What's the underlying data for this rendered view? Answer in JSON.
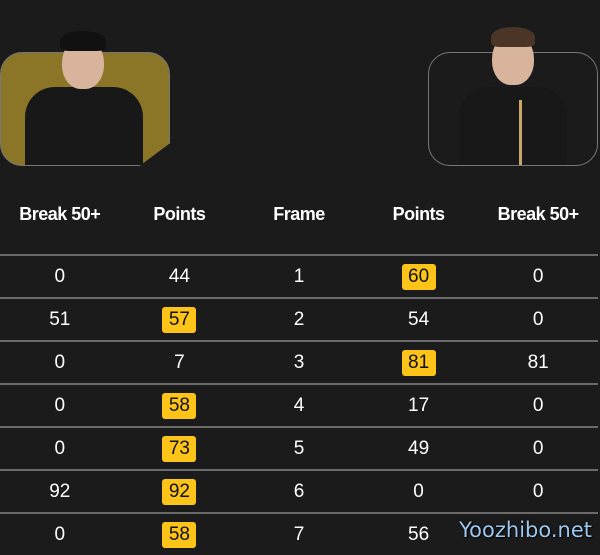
{
  "header": {
    "columns": [
      "Break 50+",
      "Points",
      "Frame",
      "Points",
      "Break 50+"
    ]
  },
  "colors": {
    "highlight": "#fcc419",
    "left_player_bg": "#8b7527",
    "background": "#1b1b1b"
  },
  "frames": [
    {
      "left_break": "0",
      "left_points": "44",
      "frame": "1",
      "right_points": "60",
      "right_break": "0",
      "winner": "right"
    },
    {
      "left_break": "51",
      "left_points": "57",
      "frame": "2",
      "right_points": "54",
      "right_break": "0",
      "winner": "left"
    },
    {
      "left_break": "0",
      "left_points": "7",
      "frame": "3",
      "right_points": "81",
      "right_break": "81",
      "winner": "right"
    },
    {
      "left_break": "0",
      "left_points": "58",
      "frame": "4",
      "right_points": "17",
      "right_break": "0",
      "winner": "left"
    },
    {
      "left_break": "0",
      "left_points": "73",
      "frame": "5",
      "right_points": "49",
      "right_break": "0",
      "winner": "left"
    },
    {
      "left_break": "92",
      "left_points": "92",
      "frame": "6",
      "right_points": "0",
      "right_break": "0",
      "winner": "left"
    },
    {
      "left_break": "0",
      "left_points": "58",
      "frame": "7",
      "right_points": "56",
      "right_break": "",
      "winner": "left"
    }
  ],
  "watermark": "Yoozhibo.net"
}
